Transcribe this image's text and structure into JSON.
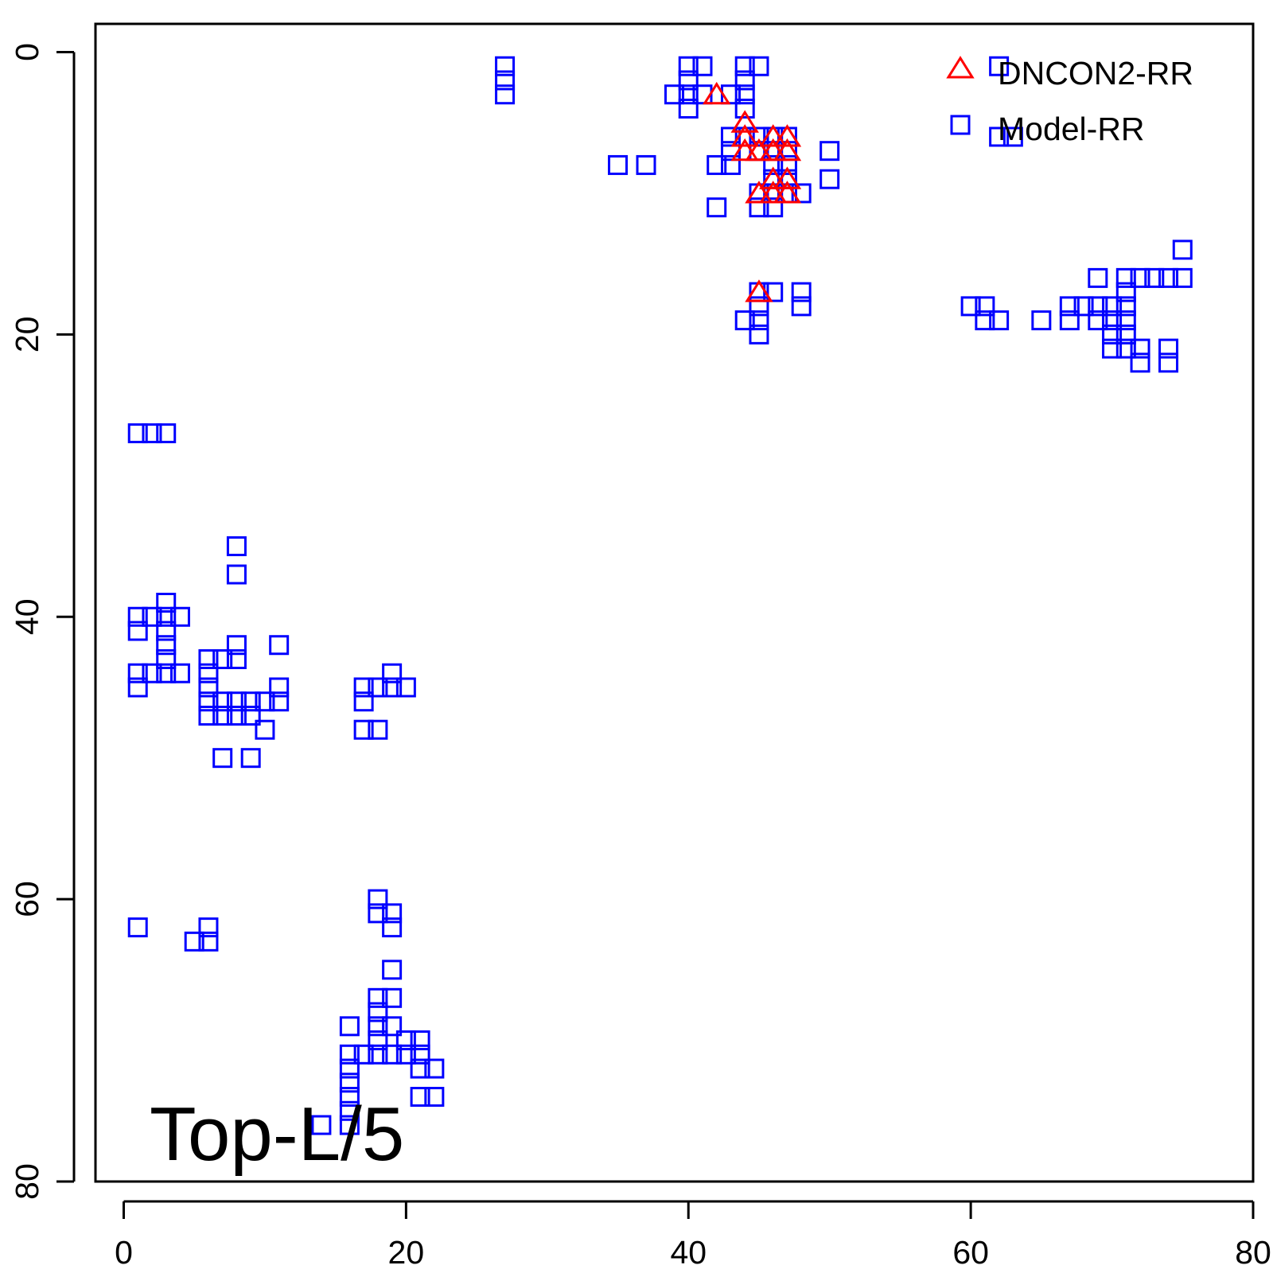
{
  "chart_data": {
    "type": "scatter",
    "title": "",
    "xlabel": "",
    "ylabel": "",
    "xlim": [
      -2,
      80
    ],
    "ylim": [
      80,
      -2
    ],
    "y_axis_inverted": true,
    "x_ticks": [
      0,
      20,
      40,
      60,
      80
    ],
    "y_ticks": [
      0,
      20,
      40,
      60,
      80
    ],
    "x_tick_labels": [
      "0",
      "20",
      "40",
      "60",
      "80"
    ],
    "y_tick_labels": [
      "0",
      "20",
      "40",
      "60",
      "80"
    ],
    "grid": false,
    "legend_position": "top-right",
    "annotation": "Top-L/5",
    "series": [
      {
        "name": "DNCON2-RR",
        "marker": "triangle-open",
        "color": "#ff0000",
        "points": [
          [
            42,
            3
          ],
          [
            44,
            5
          ],
          [
            44,
            6
          ],
          [
            44,
            7
          ],
          [
            45,
            7
          ],
          [
            46,
            6
          ],
          [
            46,
            7
          ],
          [
            47,
            6
          ],
          [
            47,
            7
          ],
          [
            46,
            9
          ],
          [
            47,
            9
          ],
          [
            45,
            10
          ],
          [
            46,
            10
          ],
          [
            47,
            10
          ],
          [
            45,
            17
          ]
        ]
      },
      {
        "name": "Model-RR",
        "marker": "square-open",
        "color": "#0000ff",
        "points": [
          [
            27,
            1
          ],
          [
            27,
            2
          ],
          [
            27,
            3
          ],
          [
            40,
            1
          ],
          [
            41,
            1
          ],
          [
            40,
            2
          ],
          [
            39,
            3
          ],
          [
            40,
            3
          ],
          [
            41,
            3
          ],
          [
            40,
            4
          ],
          [
            44,
            1
          ],
          [
            45,
            1
          ],
          [
            44,
            2
          ],
          [
            43,
            3
          ],
          [
            44,
            3
          ],
          [
            44,
            4
          ],
          [
            43,
            6
          ],
          [
            44,
            6
          ],
          [
            43,
            7
          ],
          [
            42,
            8
          ],
          [
            43,
            8
          ],
          [
            35,
            8
          ],
          [
            37,
            8
          ],
          [
            42,
            11
          ],
          [
            45,
            6
          ],
          [
            46,
            6
          ],
          [
            47,
            6
          ],
          [
            46,
            7
          ],
          [
            47,
            7
          ],
          [
            45,
            7
          ],
          [
            46,
            8
          ],
          [
            47,
            8
          ],
          [
            46,
            9
          ],
          [
            47,
            9
          ],
          [
            45,
            10
          ],
          [
            46,
            10
          ],
          [
            47,
            10
          ],
          [
            48,
            10
          ],
          [
            45,
            11
          ],
          [
            46,
            11
          ],
          [
            50,
            7
          ],
          [
            50,
            9
          ],
          [
            45,
            17
          ],
          [
            46,
            17
          ],
          [
            48,
            17
          ],
          [
            48,
            18
          ],
          [
            44,
            19
          ],
          [
            45,
            18
          ],
          [
            45,
            19
          ],
          [
            45,
            20
          ],
          [
            62,
            1
          ],
          [
            62,
            6
          ],
          [
            63,
            6
          ],
          [
            75,
            14
          ],
          [
            69,
            16
          ],
          [
            71,
            16
          ],
          [
            72,
            16
          ],
          [
            73,
            16
          ],
          [
            74,
            16
          ],
          [
            75,
            16
          ],
          [
            71,
            17
          ],
          [
            60,
            18
          ],
          [
            61,
            18
          ],
          [
            61,
            19
          ],
          [
            62,
            19
          ],
          [
            65,
            19
          ],
          [
            67,
            18
          ],
          [
            67,
            19
          ],
          [
            68,
            18
          ],
          [
            69,
            18
          ],
          [
            69,
            19
          ],
          [
            70,
            18
          ],
          [
            70,
            19
          ],
          [
            70,
            20
          ],
          [
            70,
            21
          ],
          [
            71,
            18
          ],
          [
            71,
            19
          ],
          [
            71,
            20
          ],
          [
            71,
            21
          ],
          [
            72,
            21
          ],
          [
            72,
            22
          ],
          [
            74,
            21
          ],
          [
            74,
            22
          ],
          [
            1,
            27
          ],
          [
            2,
            27
          ],
          [
            3,
            27
          ],
          [
            8,
            35
          ],
          [
            8,
            37
          ],
          [
            1,
            40
          ],
          [
            1,
            41
          ],
          [
            2,
            40
          ],
          [
            3,
            39
          ],
          [
            3,
            40
          ],
          [
            3,
            41
          ],
          [
            3,
            42
          ],
          [
            3,
            43
          ],
          [
            4,
            40
          ],
          [
            1,
            44
          ],
          [
            1,
            45
          ],
          [
            2,
            44
          ],
          [
            3,
            44
          ],
          [
            4,
            44
          ],
          [
            6,
            43
          ],
          [
            6,
            44
          ],
          [
            6,
            45
          ],
          [
            6,
            46
          ],
          [
            6,
            47
          ],
          [
            7,
            43
          ],
          [
            7,
            46
          ],
          [
            7,
            47
          ],
          [
            8,
            42
          ],
          [
            8,
            43
          ],
          [
            8,
            46
          ],
          [
            8,
            47
          ],
          [
            9,
            46
          ],
          [
            9,
            47
          ],
          [
            10,
            46
          ],
          [
            10,
            48
          ],
          [
            11,
            42
          ],
          [
            11,
            45
          ],
          [
            11,
            46
          ],
          [
            7,
            50
          ],
          [
            9,
            50
          ],
          [
            17,
            45
          ],
          [
            17,
            46
          ],
          [
            18,
            45
          ],
          [
            19,
            44
          ],
          [
            19,
            45
          ],
          [
            20,
            45
          ],
          [
            17,
            48
          ],
          [
            18,
            48
          ],
          [
            1,
            62
          ],
          [
            5,
            63
          ],
          [
            6,
            62
          ],
          [
            6,
            63
          ],
          [
            18,
            60
          ],
          [
            18,
            61
          ],
          [
            19,
            61
          ],
          [
            19,
            62
          ],
          [
            19,
            65
          ],
          [
            18,
            67
          ],
          [
            19,
            67
          ],
          [
            18,
            68
          ],
          [
            16,
            69
          ],
          [
            18,
            69
          ],
          [
            19,
            69
          ],
          [
            18,
            70
          ],
          [
            20,
            70
          ],
          [
            21,
            70
          ],
          [
            16,
            71
          ],
          [
            17,
            71
          ],
          [
            18,
            71
          ],
          [
            19,
            71
          ],
          [
            20,
            71
          ],
          [
            21,
            71
          ],
          [
            16,
            72
          ],
          [
            21,
            72
          ],
          [
            22,
            72
          ],
          [
            16,
            73
          ],
          [
            16,
            74
          ],
          [
            21,
            74
          ],
          [
            22,
            74
          ],
          [
            16,
            75
          ],
          [
            14,
            76
          ],
          [
            16,
            76
          ]
        ]
      }
    ]
  }
}
